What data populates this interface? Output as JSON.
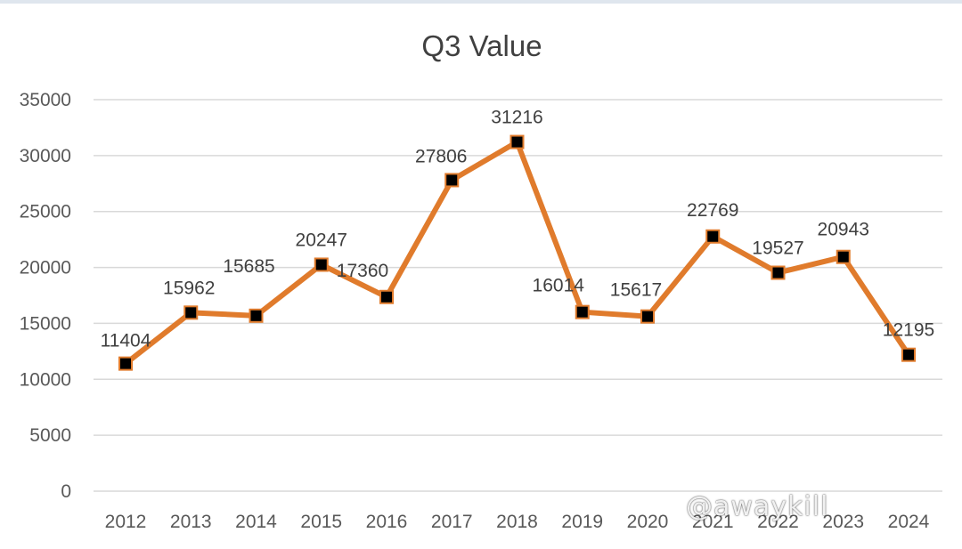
{
  "chart_data": {
    "type": "line",
    "title": "Q3 Value",
    "xlabel": "",
    "ylabel": "",
    "categories": [
      "2012",
      "2013",
      "2014",
      "2015",
      "2016",
      "2017",
      "2018",
      "2019",
      "2020",
      "2021",
      "2022",
      "2023",
      "2024"
    ],
    "series": [
      {
        "values": [
          11404,
          15962,
          15685,
          20247,
          17360,
          27806,
          31216,
          16014,
          15617,
          22769,
          19527,
          20943,
          12195
        ]
      }
    ],
    "ylim": [
      0,
      35000
    ],
    "yticks": [
      "0",
      "5000",
      "10000",
      "15000",
      "20000",
      "25000",
      "30000",
      "35000"
    ],
    "grid": true,
    "legend": "none",
    "data_labels": true
  },
  "colors": {
    "line": "#e07b2c",
    "marker_fill": "#000000",
    "marker_border": "#e07b2c"
  },
  "watermark": "@awaykill"
}
